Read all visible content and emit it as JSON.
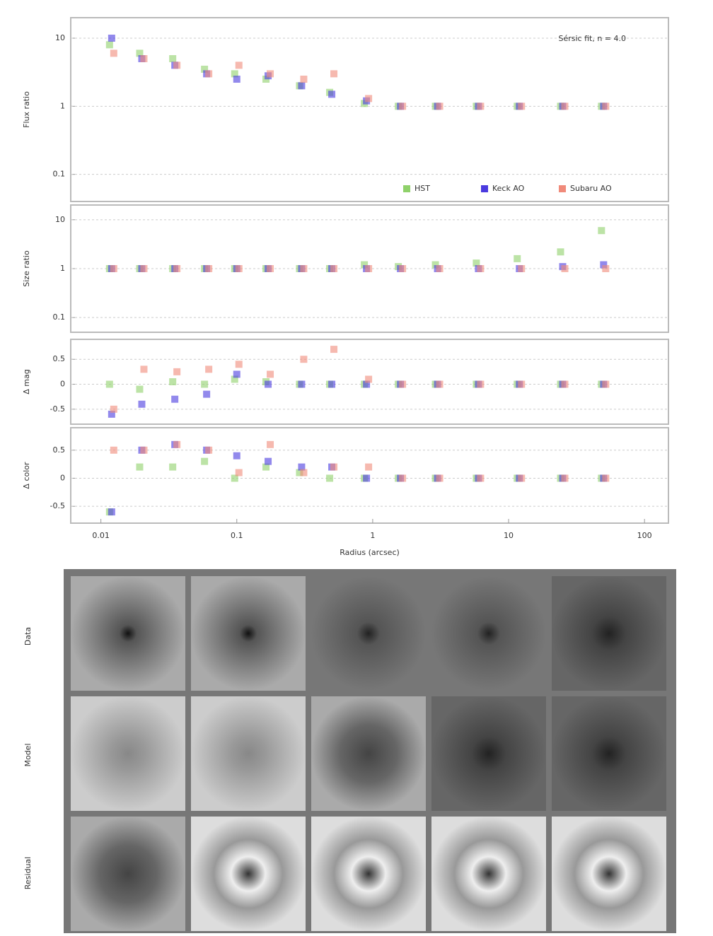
{
  "chart_data": [
    {
      "type": "scatter",
      "ylabel": "Flux ratio",
      "annotation": "Sérsic fit, n = 4.0",
      "log_x": true,
      "log_y": true,
      "grid": true,
      "legend": "lower right",
      "x": [
        0.012,
        0.02,
        0.035,
        0.06,
        0.1,
        0.17,
        0.3,
        0.5,
        0.9,
        1.6,
        3,
        6,
        12,
        25,
        50
      ],
      "xlim": [
        0.006,
        150
      ],
      "ylim": [
        0.04,
        20
      ],
      "yticks": [
        0.1,
        1,
        10
      ],
      "series": [
        {
          "name": "HST",
          "color": "#8fd16a",
          "values": [
            8,
            6,
            5,
            3.5,
            3,
            2.5,
            2,
            1.6,
            1.1,
            1,
            1,
            1,
            1,
            1,
            1
          ]
        },
        {
          "name": "Keck AO",
          "color": "#4a3adf",
          "values": [
            10,
            5,
            4,
            3,
            2.5,
            2.8,
            2,
            1.5,
            1.2,
            1,
            1,
            1,
            1,
            1,
            1
          ]
        },
        {
          "name": "Subaru AO",
          "color": "#f08a7a",
          "values": [
            6,
            5,
            4,
            3,
            4,
            3,
            2.5,
            3,
            1.3,
            1,
            1,
            1,
            1,
            1,
            1
          ]
        }
      ]
    },
    {
      "type": "scatter",
      "ylabel": "Size ratio",
      "log_x": true,
      "log_y": true,
      "grid": true,
      "x": [
        0.012,
        0.02,
        0.035,
        0.06,
        0.1,
        0.17,
        0.3,
        0.5,
        0.9,
        1.6,
        3,
        6,
        12,
        25,
        50
      ],
      "xlim": [
        0.006,
        150
      ],
      "ylim": [
        0.05,
        20
      ],
      "yticks": [
        0.1,
        1,
        10
      ],
      "series": [
        {
          "name": "HST",
          "color": "#8fd16a",
          "values": [
            1,
            1,
            1,
            1,
            1,
            1,
            1,
            1,
            1.2,
            1.1,
            1.2,
            1.3,
            1.6,
            2.2,
            6
          ]
        },
        {
          "name": "Keck AO",
          "color": "#4a3adf",
          "values": [
            1,
            1,
            1,
            1,
            1,
            1,
            1,
            1,
            1,
            1,
            1,
            1,
            1,
            1.1,
            1.2
          ]
        },
        {
          "name": "Subaru AO",
          "color": "#f08a7a",
          "values": [
            1,
            1,
            1,
            1,
            1,
            1,
            1,
            1,
            1,
            1,
            1,
            1,
            1,
            1,
            1
          ]
        }
      ]
    },
    {
      "type": "scatter",
      "ylabel": "Δ mag",
      "log_x": true,
      "log_y": false,
      "grid": true,
      "x": [
        0.012,
        0.02,
        0.035,
        0.06,
        0.1,
        0.17,
        0.3,
        0.5,
        0.9,
        1.6,
        3,
        6,
        12,
        25,
        50
      ],
      "xlim": [
        0.006,
        150
      ],
      "ylim": [
        -0.8,
        0.9
      ],
      "yticks": [
        -0.5,
        0,
        0.5
      ],
      "series": [
        {
          "name": "HST",
          "color": "#8fd16a",
          "values": [
            0,
            -0.1,
            0.05,
            0,
            0.1,
            0.05,
            0,
            0,
            0,
            0,
            0,
            0,
            0,
            0,
            0
          ]
        },
        {
          "name": "Keck AO",
          "color": "#4a3adf",
          "values": [
            -0.6,
            -0.4,
            -0.3,
            -0.2,
            0.2,
            0,
            0,
            0,
            0,
            0,
            0,
            0,
            0,
            0,
            0
          ]
        },
        {
          "name": "Subaru AO",
          "color": "#f08a7a",
          "values": [
            -0.5,
            0.3,
            0.25,
            0.3,
            0.4,
            0.2,
            0.5,
            0.7,
            0.1,
            0,
            0,
            0,
            0,
            0,
            0
          ]
        }
      ]
    },
    {
      "type": "scatter",
      "ylabel": "Δ color",
      "xlabel": "Radius (arcsec)",
      "log_x": true,
      "log_y": false,
      "grid": true,
      "x": [
        0.012,
        0.02,
        0.035,
        0.06,
        0.1,
        0.17,
        0.3,
        0.5,
        0.9,
        1.6,
        3,
        6,
        12,
        25,
        50
      ],
      "xlim": [
        0.006,
        150
      ],
      "ylim": [
        -0.8,
        0.9
      ],
      "xticks": [
        0.01,
        0.1,
        1,
        10,
        100
      ],
      "yticks": [
        -0.5,
        0,
        0.5
      ],
      "series": [
        {
          "name": "HST",
          "color": "#8fd16a",
          "values": [
            -0.6,
            0.2,
            0.2,
            0.3,
            0,
            0.2,
            0.1,
            0,
            0,
            0,
            0,
            0,
            0,
            0,
            0
          ]
        },
        {
          "name": "Keck AO",
          "color": "#4a3adf",
          "values": [
            -0.6,
            0.5,
            0.6,
            0.5,
            0.4,
            0.3,
            0.2,
            0.2,
            0,
            0,
            0,
            0,
            0,
            0,
            0
          ]
        },
        {
          "name": "Subaru AO",
          "color": "#f08a7a",
          "values": [
            0.5,
            0.5,
            0.6,
            0.5,
            0.1,
            0.6,
            0.1,
            0.2,
            0.2,
            0,
            0,
            0,
            0,
            0,
            0
          ]
        }
      ]
    }
  ],
  "image_grid": {
    "row_labels": [
      "Data",
      "Model",
      "Residual"
    ]
  }
}
